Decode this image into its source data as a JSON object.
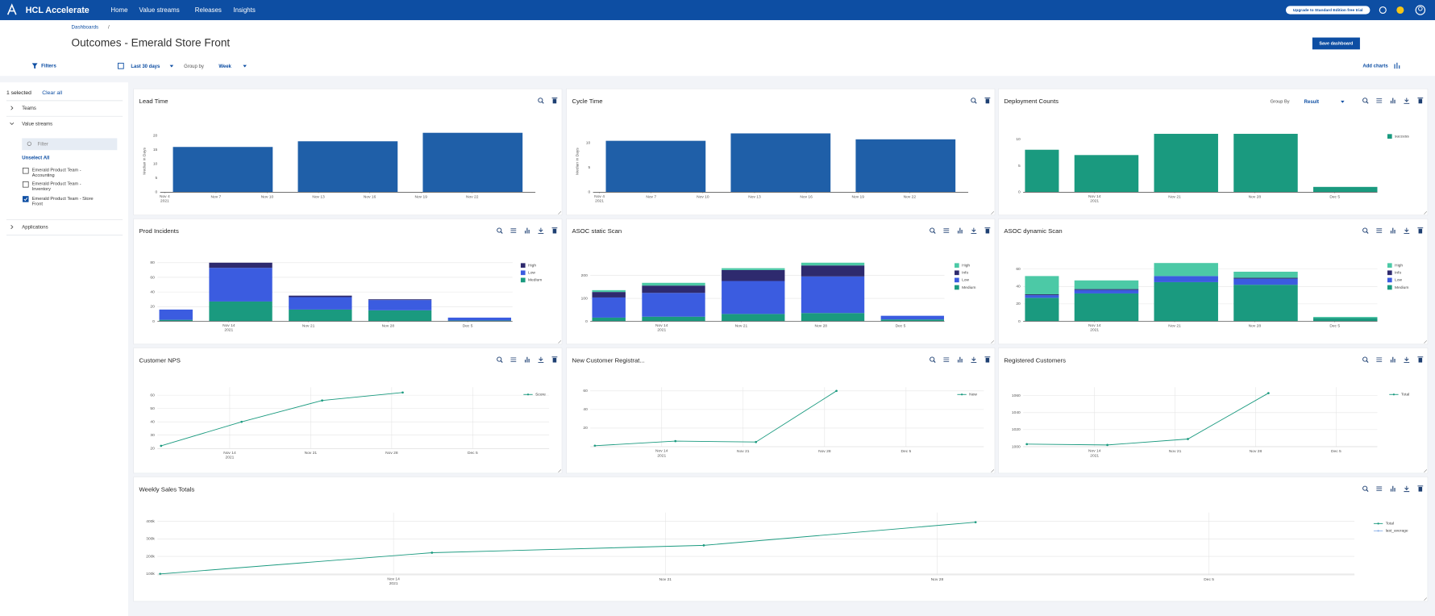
{
  "header": {
    "brand": "HCL Accelerate",
    "nav": [
      "Home",
      "Value streams",
      "Releases",
      "Insights"
    ],
    "upgrade": "Upgrade to Standard Edition free trial"
  },
  "breadcrumb": {
    "link": "Dashboards",
    "separator": "/"
  },
  "title": "Outcomes - Emerald Store Front",
  "save_button": "Save dashboard",
  "toolbar": {
    "filters": "Filters",
    "range": "Last 30 days",
    "group_by_label": "Group by",
    "group_by": "Week",
    "add_charts": "Add charts"
  },
  "sidebar": {
    "selected": "1 selected",
    "clear": "Clear all",
    "teams": "Teams",
    "value_streams": {
      "label": "Value streams",
      "filter": "Filter",
      "unselect": "Unselect All",
      "items": [
        {
          "label": "Emerald Product Team -\nAccounting",
          "checked": false
        },
        {
          "label": "Emerald Product Team -\nInventory",
          "checked": false
        },
        {
          "label": "Emerald Product Team - Store\nFront",
          "checked": true
        }
      ]
    },
    "applications": "Applications"
  },
  "chart_data": [
    {
      "type": "bar",
      "title": "Lead Time",
      "y_label": "Median in Days",
      "categories": [
        null,
        null,
        null
      ],
      "values": [
        16,
        18,
        21
      ],
      "color": "#1f5fa8",
      "ylim": [
        0,
        22
      ],
      "yticks": [
        0,
        5,
        10,
        15,
        20
      ],
      "xticks": [
        "Nov 4\n2021",
        "Nov 7",
        "Nov 10",
        "Nov 13",
        "Nov 16",
        "Nov 19",
        "Nov 22"
      ],
      "grid": false
    },
    {
      "type": "bar",
      "title": "Cycle Time",
      "y_label": "Median in Days",
      "categories": [
        null,
        null,
        null
      ],
      "values": [
        10.4,
        11.9,
        10.7
      ],
      "color": "#1f5fa8",
      "ylim": [
        0,
        12.5
      ],
      "yticks": [
        0,
        5,
        10
      ],
      "xticks": [
        "Nov 4\n2021",
        "Nov 7",
        "Nov 10",
        "Nov 13",
        "Nov 16",
        "Nov 19",
        "Nov 22"
      ],
      "grid": false
    },
    {
      "type": "stacked_bar",
      "title": "Deployment Counts",
      "group_by_label": "Group By",
      "group_by": "Result",
      "categories": [
        null,
        null,
        null,
        null,
        null
      ],
      "series": [
        {
          "name": "success",
          "color": "#1a9a7f",
          "values": [
            8,
            7,
            11,
            11,
            1
          ]
        }
      ],
      "ylim": [
        0,
        12
      ],
      "yticks": [
        0,
        5,
        10
      ],
      "xticks": [
        "Nov 14\n2021",
        "Nov 21",
        "Nov 28",
        "Dec 5"
      ],
      "grid": false
    },
    {
      "type": "stacked_bar",
      "title": "Prod Incidents",
      "categories": [
        null,
        null,
        null,
        null,
        null
      ],
      "series": [
        {
          "name": "High",
          "color": "#2e2a6e",
          "values": [
            0,
            7,
            2,
            1,
            0
          ]
        },
        {
          "name": "Low",
          "color": "#3b5ce0",
          "values": [
            14,
            46,
            17,
            14,
            4
          ]
        },
        {
          "name": "Medium",
          "color": "#1a9a7f",
          "values": [
            2,
            27,
            16,
            15,
            1
          ]
        }
      ],
      "ylim": [
        0,
        85
      ],
      "yticks": [
        0,
        20,
        40,
        60,
        80
      ],
      "xticks": [
        "Nov 14\n2021",
        "Nov 21",
        "Nov 28",
        "Dec 5"
      ],
      "grid": true
    },
    {
      "type": "stacked_bar",
      "title": "ASOC static Scan",
      "categories": [
        null,
        null,
        null,
        null,
        null
      ],
      "series": [
        {
          "name": "High",
          "color": "#4cc9a6",
          "values": [
            8,
            12,
            8,
            12,
            0
          ]
        },
        {
          "name": "Info",
          "color": "#2e2a6e",
          "values": [
            24,
            32,
            48,
            48,
            0
          ]
        },
        {
          "name": "Low",
          "color": "#3b5ce0",
          "values": [
            88,
            104,
            144,
            160,
            16
          ]
        },
        {
          "name": "Medium",
          "color": "#1a9a7f",
          "values": [
            16,
            20,
            32,
            36,
            8
          ]
        }
      ],
      "ylim": [
        0,
        260
      ],
      "yticks": [
        0,
        100,
        200
      ],
      "xticks": [
        "Nov 14\n2021",
        "Nov 21",
        "Nov 28",
        "Dec 5"
      ],
      "grid": true
    },
    {
      "type": "stacked_bar",
      "title": "ASOC dynamic Scan",
      "categories": [
        null,
        null,
        null,
        null,
        null
      ],
      "series": [
        {
          "name": "High",
          "color": "#4cc9a6",
          "values": [
            21,
            10,
            15,
            7,
            1
          ]
        },
        {
          "name": "Info",
          "color": "#2e2a6e",
          "values": [
            1,
            1,
            0,
            1,
            0
          ]
        },
        {
          "name": "Low",
          "color": "#3b5ce0",
          "values": [
            3,
            4,
            7,
            7,
            0
          ]
        },
        {
          "name": "Medium",
          "color": "#1a9a7f",
          "values": [
            27,
            32,
            45,
            42,
            4
          ]
        }
      ],
      "ylim": [
        0,
        68
      ],
      "yticks": [
        0,
        20,
        40,
        60
      ],
      "xticks": [
        "Nov 14\n2021",
        "Nov 21",
        "Nov 28",
        "Dec 5"
      ],
      "grid": true
    },
    {
      "type": "line",
      "title": "Customer NPS",
      "categories": [
        null,
        null,
        null,
        null
      ],
      "series": [
        {
          "name": "Score",
          "color": "#1a9a7f",
          "values": [
            22,
            40,
            56,
            62
          ]
        }
      ],
      "ylim": [
        20,
        66
      ],
      "yticks": [
        20,
        30,
        40,
        50,
        60
      ],
      "xticks": [
        "Nov 14\n2021",
        "Nov 21",
        "Nov 28",
        "Dec 5"
      ],
      "grid": true
    },
    {
      "type": "line",
      "title": "New Customer Registrat...",
      "categories": [
        null,
        null,
        null,
        null
      ],
      "series": [
        {
          "name": "New",
          "color": "#1a9a7f",
          "values": [
            1,
            6,
            5,
            60
          ]
        }
      ],
      "ylim": [
        0,
        64
      ],
      "yticks": [
        20,
        40,
        60
      ],
      "xticks": [
        "Nov 14\n2021",
        "Nov 21",
        "Nov 28",
        "Dec 5"
      ],
      "grid": true
    },
    {
      "type": "line",
      "title": "Registered Customers",
      "categories": [
        null,
        null,
        null,
        null
      ],
      "series": [
        {
          "name": "Total",
          "color": "#1a9a7f",
          "values": [
            1003,
            1002,
            1009,
            1063
          ]
        }
      ],
      "ylim": [
        1000,
        1070
      ],
      "yticks": [
        1000,
        1020,
        1040,
        1060
      ],
      "xticks": [
        "Nov 14\n2021",
        "Nov 21",
        "Nov 28",
        "Dec 5"
      ],
      "grid": true
    },
    {
      "type": "line",
      "title": "Weekly Sales Totals",
      "categories": [
        null,
        null,
        null,
        null
      ],
      "series": [
        {
          "name": "Total",
          "color": "#1a9a7f",
          "values": [
            100000,
            221000,
            263000,
            395000
          ]
        },
        {
          "name": "last_average",
          "color": "#8fb3e8",
          "values": [
            null,
            null,
            null,
            null
          ]
        }
      ],
      "ylim": [
        95000,
        450000
      ],
      "yticks": [
        {
          "value": 100000,
          "label": "100k"
        },
        {
          "value": 200000,
          "label": "200k"
        },
        {
          "value": 300000,
          "label": "300k"
        },
        {
          "value": 400000,
          "label": "400k"
        }
      ],
      "xticks": [
        "Nov 14\n2021",
        "Nov 21",
        "Nov 28",
        "Dec 5"
      ],
      "grid": true
    }
  ]
}
